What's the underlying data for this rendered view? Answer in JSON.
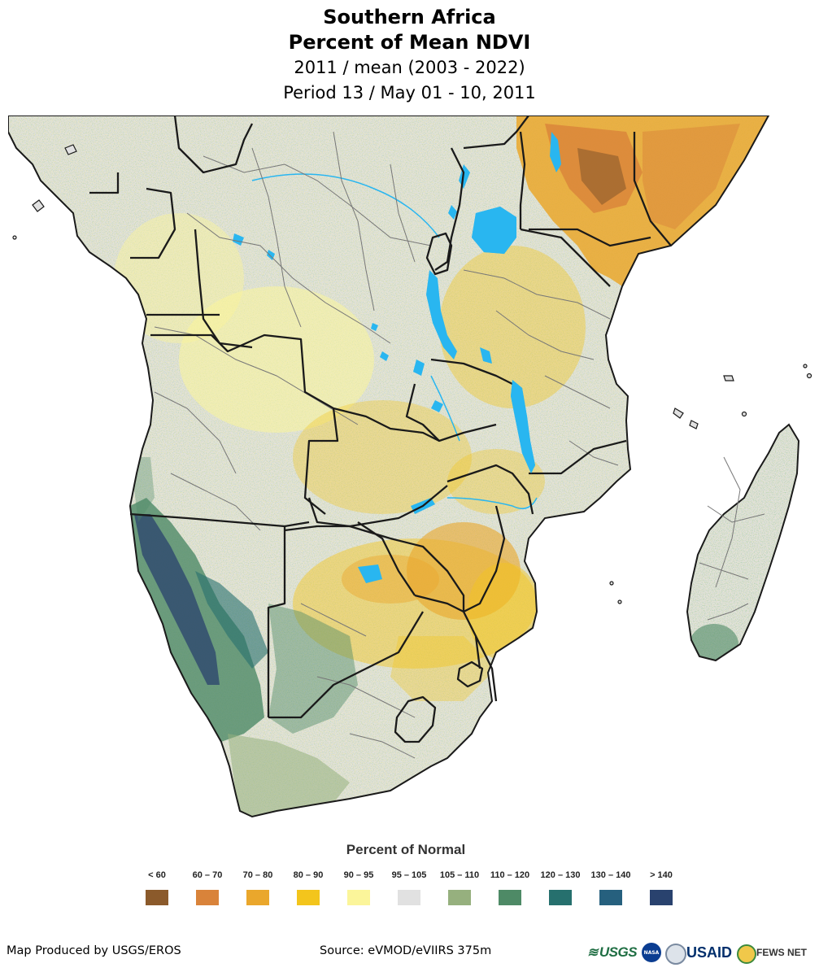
{
  "title": {
    "line1": "Southern Africa",
    "line2": "Percent of Mean NDVI",
    "line3": "2011 / mean (2003 - 2022)",
    "line4": "Period 13 / May 01 - 10, 2011"
  },
  "legend": {
    "title": "Percent of Normal",
    "classes": [
      {
        "label": "< 60",
        "color": "#8b5a2b"
      },
      {
        "label": "60 – 70",
        "color": "#d9833a"
      },
      {
        "label": "70 – 80",
        "color": "#eaa72c"
      },
      {
        "label": "80 – 90",
        "color": "#f3c51c"
      },
      {
        "label": "90 – 95",
        "color": "#fbf59a"
      },
      {
        "label": "95 – 105",
        "color": "#e1e1e1"
      },
      {
        "label": "105 – 110",
        "color": "#96b07e"
      },
      {
        "label": "110 – 120",
        "color": "#4e8a66"
      },
      {
        "label": "120 – 130",
        "color": "#26706e"
      },
      {
        "label": "130 – 140",
        "color": "#26607e"
      },
      {
        "label": "> 140",
        "color": "#29426e"
      }
    ]
  },
  "footer": {
    "producer": "Map Produced by USGS/EROS",
    "source": "Source: eVMOD/eVIIRS 375m"
  },
  "logos": {
    "usgs": "USGS",
    "nasa": "NASA",
    "usaid": "USAID",
    "fews": "FEWS NET"
  },
  "map_colors": {
    "land": "#e1e1e1",
    "water": "#29b6f0",
    "border": "#1a1a1a",
    "admin": "#777777"
  }
}
